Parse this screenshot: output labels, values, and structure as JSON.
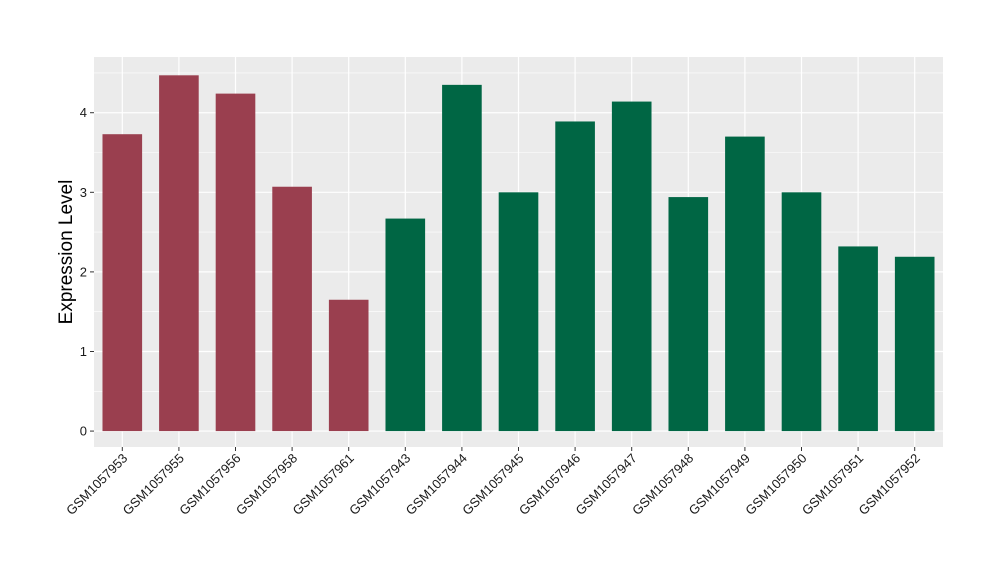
{
  "chart_data": {
    "type": "bar",
    "title": "",
    "xlabel": "",
    "ylabel": "Expression Level",
    "ylim": [
      -0.2,
      4.7
    ],
    "yticks": [
      0,
      1,
      2,
      3,
      4
    ],
    "grid": true,
    "legend": "none",
    "categories": [
      "GSM1057953",
      "GSM1057955",
      "GSM1057956",
      "GSM1057958",
      "GSM1057961",
      "GSM1057943",
      "GSM1057944",
      "GSM1057945",
      "GSM1057946",
      "GSM1057947",
      "GSM1057948",
      "GSM1057949",
      "GSM1057950",
      "GSM1057951",
      "GSM1057952"
    ],
    "values": [
      3.73,
      4.47,
      4.24,
      3.07,
      1.65,
      2.67,
      4.35,
      3.0,
      3.89,
      4.14,
      2.94,
      3.7,
      3.0,
      2.32,
      2.19
    ],
    "bar_colors": [
      "#9a3f4f",
      "#9a3f4f",
      "#9a3f4f",
      "#9a3f4f",
      "#9a3f4f",
      "#006644",
      "#006644",
      "#006644",
      "#006644",
      "#006644",
      "#006644",
      "#006644",
      "#006644",
      "#006644",
      "#006644"
    ],
    "panel_background": "#ebebeb",
    "grid_color": "#ffffff"
  }
}
